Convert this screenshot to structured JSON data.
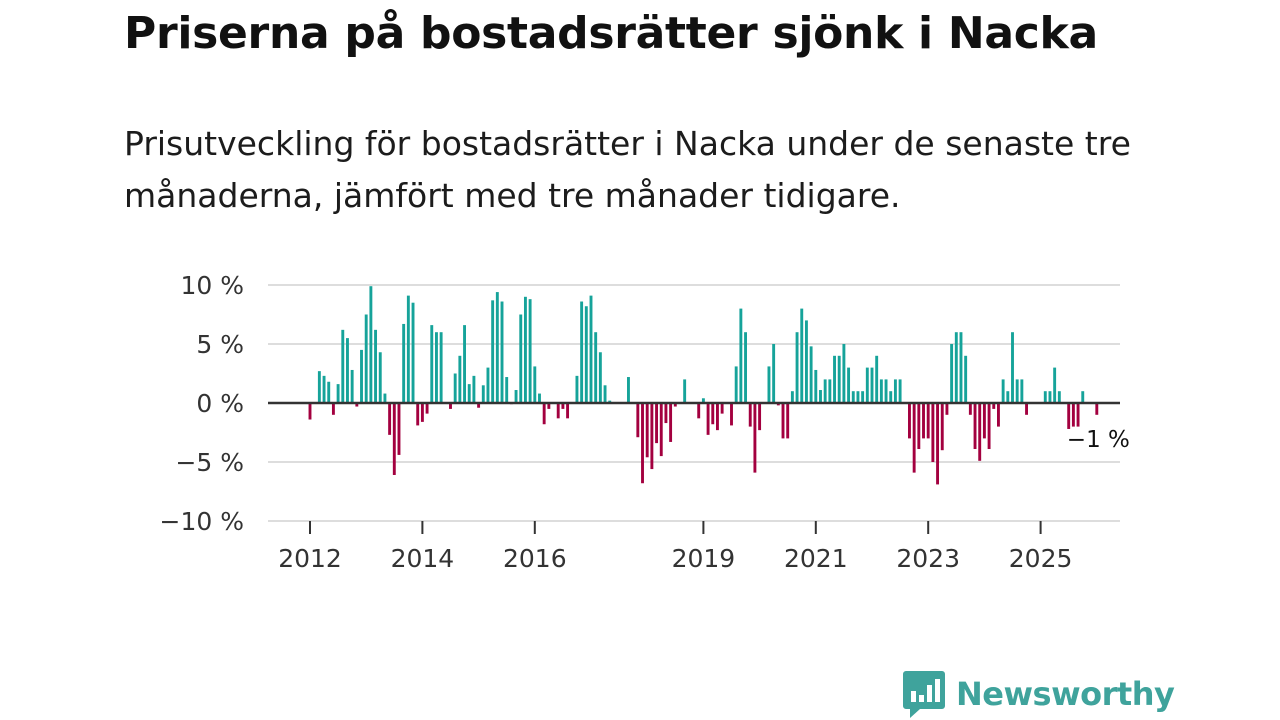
{
  "header": {
    "title": "Priserna på bostadsrätter sjönk i Nacka",
    "subtitle": "Prisutveckling för bostadsrätter i Nacka under de senaste tre månaderna, jämfört med tre månader tidigare."
  },
  "colors": {
    "positive": "#16a39a",
    "negative": "#a3003f",
    "grid": "#dddddd",
    "zero_line": "#333333",
    "brand": "#3fa39c"
  },
  "chart_data": {
    "type": "bar",
    "title": "Priserna på bostadsrätter sjönk i Nacka",
    "xlabel": "",
    "ylabel": "",
    "ylim": [
      -10,
      10
    ],
    "y_ticks": [
      10,
      5,
      0,
      -5,
      -10
    ],
    "y_tick_labels": [
      "10 %",
      "5 %",
      "0 %",
      "−5 %",
      "−10 %"
    ],
    "x_ticks": [
      2012,
      2014,
      2016,
      2019,
      2021,
      2023,
      2025
    ],
    "x_tick_labels": [
      "2012",
      "2014",
      "2016",
      "2019",
      "2021",
      "2023",
      "2025"
    ],
    "start": "2012-01",
    "values": [
      -1.4,
      0,
      2.7,
      2.3,
      1.8,
      -1.0,
      1.6,
      6.2,
      5.5,
      2.8,
      -0.3,
      4.5,
      7.5,
      9.9,
      6.2,
      4.3,
      0.8,
      -2.7,
      -6.1,
      -4.4,
      6.7,
      9.1,
      8.5,
      -1.9,
      -1.6,
      -0.9,
      6.6,
      6.0,
      6.0,
      0,
      -0.5,
      2.5,
      4.0,
      6.6,
      1.6,
      2.3,
      -0.4,
      1.5,
      3.0,
      8.7,
      9.4,
      8.6,
      2.2,
      -0.1,
      1.1,
      7.5,
      9.0,
      8.8,
      3.1,
      0.8,
      -1.8,
      -0.5,
      0,
      -1.3,
      -0.5,
      -1.3,
      0,
      2.3,
      8.6,
      8.2,
      9.1,
      6.0,
      4.3,
      1.5,
      0.2,
      0,
      0,
      0,
      2.2,
      0,
      -2.9,
      -6.8,
      -4.6,
      -5.6,
      -3.4,
      -4.5,
      -1.7,
      -3.3,
      -0.3,
      0,
      2.0,
      0,
      0,
      -1.3,
      0.4,
      -2.7,
      -1.8,
      -2.3,
      -0.9,
      0,
      -1.9,
      3.1,
      8.0,
      6.0,
      -2.0,
      -5.9,
      -2.3,
      0,
      3.1,
      5.0,
      -0.2,
      -3.0,
      -3.0,
      1.0,
      6.0,
      8.0,
      7.0,
      4.8,
      2.8,
      1.1,
      2.0,
      2.0,
      4.0,
      4.0,
      5.0,
      3.0,
      1.0,
      1.0,
      1.0,
      3.0,
      3.0,
      4.0,
      2.0,
      2.0,
      1.0,
      2.0,
      2.0,
      0,
      -3.0,
      -5.9,
      -3.9,
      -3.0,
      -3.0,
      -5.0,
      -6.9,
      -4.0,
      -1.0,
      5.0,
      6.0,
      6.0,
      4.0,
      -1.0,
      -3.9,
      -4.9,
      -3.0,
      -3.9,
      -0.5,
      -2.0,
      2.0,
      1.0,
      6.0,
      2.0,
      2.0,
      -1.0,
      0,
      0,
      0,
      1.0,
      1.0,
      3.0,
      1.0,
      0,
      -2.2,
      -2.0,
      -2.0,
      1.0,
      0,
      0,
      -1.0
    ],
    "annotation": {
      "label": "−1 %",
      "value": -1
    }
  },
  "footer": {
    "brand_name": "Newsworthy"
  }
}
